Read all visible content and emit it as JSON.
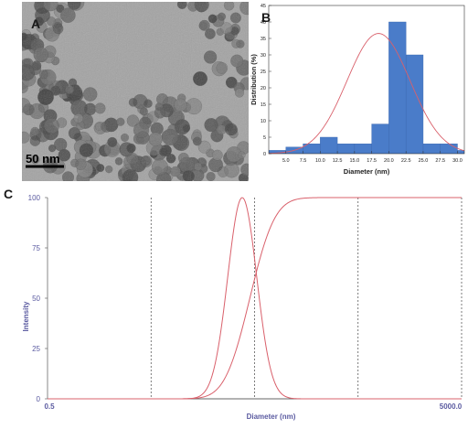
{
  "panels": {
    "a": {
      "letter": "A",
      "scale_bar_label": "50 nm"
    },
    "b": {
      "letter": "B"
    },
    "c": {
      "letter": "C"
    }
  },
  "colors": {
    "bar_fill": "#4a7cc9",
    "fit_curve": "#d9606b",
    "axis_text_b": "#222222",
    "axis_text_c": "#5a5aa0",
    "micrograph_bg": "#9a9a9a"
  },
  "chart_data": [
    {
      "panel": "B",
      "type": "bar",
      "xlabel": "Diameter (nm)",
      "ylabel": "Distribution (%)",
      "xlim": [
        2.5,
        31
      ],
      "ylim": [
        0,
        45
      ],
      "xticks": [
        "5.0",
        "7.5",
        "10.0",
        "12.5",
        "15.0",
        "17.5",
        "20.0",
        "22.5",
        "25.0",
        "27.5",
        "30.0"
      ],
      "yticks": [
        "0",
        "5",
        "10",
        "15",
        "20",
        "25",
        "30",
        "35",
        "40",
        "45"
      ],
      "bin_width": 2.5,
      "bin_centers": [
        3.75,
        6.25,
        8.75,
        11.25,
        13.75,
        16.25,
        18.75,
        21.25,
        23.75,
        26.25,
        28.75,
        31.25
      ],
      "values": [
        1,
        2,
        3,
        5,
        3,
        3,
        9,
        40,
        30,
        3,
        3,
        1
      ],
      "fit": {
        "type": "gaussian",
        "peak": 36.5,
        "center": 18.5,
        "sigma": 4.6
      },
      "grid": false
    },
    {
      "panel": "C",
      "type": "line",
      "xlabel": "Diameter (nm)",
      "ylabel": "Intensity",
      "x_scale": "log",
      "xlim": [
        0.5,
        5000
      ],
      "xtick_labels": [
        "0.5",
        "5000.0"
      ],
      "ylim": [
        0,
        100
      ],
      "yticks": [
        "0",
        "25",
        "50",
        "75",
        "100"
      ],
      "dashed_vlines": [
        5,
        50,
        500,
        5000
      ],
      "series": [
        {
          "kind": "distribution",
          "center": 38,
          "log_sigma": 0.14,
          "peak": 100
        },
        {
          "kind": "cumulative",
          "center": 45,
          "log_sigma": 0.19,
          "max": 100
        }
      ],
      "grid": false
    }
  ]
}
